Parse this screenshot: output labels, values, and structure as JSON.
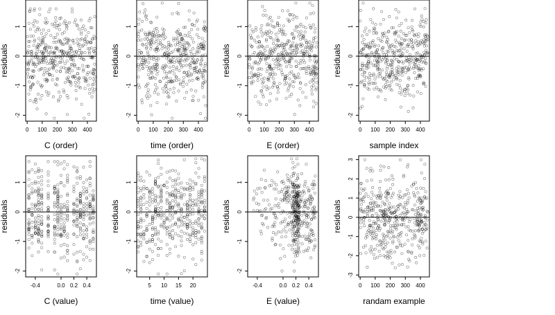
{
  "figure": {
    "background": "#ffffff",
    "point_color": "#000000",
    "reference_line": 0
  },
  "chart_data": [
    {
      "type": "scatter",
      "xlabel": "C (order)",
      "ylabel": "residuals",
      "xlim": [
        -10,
        460
      ],
      "ylim": [
        -2.2,
        1.9
      ],
      "xticks": [
        0,
        100,
        200,
        300,
        400
      ],
      "xticklabels": [
        "0",
        "100",
        "200",
        "300",
        "400"
      ],
      "yticks": [
        -2,
        -1,
        0,
        1
      ],
      "yticklabels": [
        "-2",
        "-1",
        "0",
        "1"
      ],
      "hline": 0,
      "n_points": 450,
      "x_range": [
        0,
        450
      ],
      "y_range": [
        -2.1,
        1.6
      ],
      "x_pattern": "uniform"
    },
    {
      "type": "scatter",
      "xlabel": "time (order)",
      "ylabel": "residuals",
      "xlim": [
        -10,
        460
      ],
      "ylim": [
        -2.2,
        1.9
      ],
      "xticks": [
        0,
        100,
        200,
        300,
        400
      ],
      "xticklabels": [
        "0",
        "100",
        "200",
        "300",
        "400"
      ],
      "yticks": [
        -2,
        -1,
        0,
        1
      ],
      "yticklabels": [
        "-2",
        "-1",
        "0",
        "1"
      ],
      "hline": 0,
      "n_points": 450,
      "x_range": [
        0,
        450
      ],
      "y_range": [
        -2.1,
        1.8
      ],
      "x_pattern": "uniform"
    },
    {
      "type": "scatter",
      "xlabel": "E (order)",
      "ylabel": "residuals",
      "xlim": [
        -10,
        460
      ],
      "ylim": [
        -2.2,
        1.9
      ],
      "xticks": [
        0,
        100,
        200,
        300,
        400
      ],
      "xticklabels": [
        "0",
        "100",
        "200",
        "300",
        "400"
      ],
      "yticks": [
        -2,
        -1,
        0,
        1
      ],
      "yticklabels": [
        "-2",
        "-1",
        "0",
        "1"
      ],
      "hline": 0,
      "n_points": 450,
      "x_range": [
        0,
        450
      ],
      "y_range": [
        -2.0,
        1.8
      ],
      "x_pattern": "uniform"
    },
    {
      "type": "scatter",
      "xlabel": "sample index",
      "ylabel": "residuals",
      "xlim": [
        -10,
        460
      ],
      "ylim": [
        -2.2,
        1.9
      ],
      "xticks": [
        0,
        100,
        200,
        300,
        400
      ],
      "xticklabels": [
        "0",
        "100",
        "200",
        "300",
        "400"
      ],
      "yticks": [
        -2,
        -1,
        0,
        1
      ],
      "yticklabels": [
        "-2",
        "-1",
        "0",
        "1"
      ],
      "hline": 0,
      "n_points": 450,
      "x_range": [
        0,
        450
      ],
      "y_range": [
        -2.0,
        1.8
      ],
      "x_pattern": "uniform"
    },
    {
      "type": "scatter",
      "xlabel": "C (value)",
      "ylabel": "residuals",
      "xlim": [
        -0.55,
        0.55
      ],
      "ylim": [
        -2.2,
        1.9
      ],
      "xticks": [
        -0.4,
        0.0,
        0.2,
        0.4
      ],
      "xticklabels": [
        "-0.4",
        "0.0",
        "0.2",
        "0.4"
      ],
      "yticks": [
        -2,
        -1,
        0,
        1
      ],
      "yticklabels": [
        "-2",
        "-1",
        "0",
        "1"
      ],
      "hline": 0,
      "n_points": 450,
      "x_range": [
        -0.5,
        0.5
      ],
      "y_range": [
        -2.1,
        1.7
      ],
      "x_pattern": "levels",
      "x_levels": [
        -0.5,
        -0.45,
        -0.4,
        -0.35,
        -0.3,
        -0.2,
        -0.1,
        -0.05,
        0.0,
        0.05,
        0.1,
        0.2,
        0.25,
        0.3,
        0.35,
        0.4,
        0.45,
        0.5
      ]
    },
    {
      "type": "scatter",
      "xlabel": "time (value)",
      "ylabel": "residuals",
      "xlim": [
        0.5,
        25
      ],
      "ylim": [
        -2.2,
        1.9
      ],
      "xticks": [
        5,
        10,
        15,
        20
      ],
      "xticklabels": [
        "5",
        "10",
        "15",
        "20"
      ],
      "yticks": [
        -2,
        -1,
        0,
        1
      ],
      "yticklabels": [
        "-2",
        "-1",
        "0",
        "1"
      ],
      "hline": 0,
      "n_points": 450,
      "x_range": [
        1,
        24
      ],
      "y_range": [
        -2.1,
        1.8
      ],
      "x_pattern": "levels",
      "x_levels": [
        1,
        2,
        3,
        4,
        5,
        6,
        7,
        8,
        9,
        10,
        11,
        12,
        13,
        14,
        15,
        16,
        17,
        18,
        19,
        20,
        21,
        22,
        23,
        24
      ]
    },
    {
      "type": "scatter",
      "xlabel": "E (value)",
      "ylabel": "residuals",
      "xlim": [
        -0.55,
        0.55
      ],
      "ylim": [
        -2.2,
        1.9
      ],
      "xticks": [
        -0.4,
        0.0,
        0.2,
        0.4
      ],
      "xticklabels": [
        "-0.4",
        "0.0",
        "0.2",
        "0.4"
      ],
      "yticks": [
        -2,
        -1,
        0,
        1
      ],
      "yticklabels": [
        "-2",
        "-1",
        "0",
        "1"
      ],
      "hline": 0,
      "n_points": 450,
      "x_range": [
        -0.5,
        0.5
      ],
      "y_range": [
        -2.0,
        1.8
      ],
      "x_pattern": "skewed"
    },
    {
      "type": "scatter",
      "xlabel": "randam example",
      "ylabel": "residuals",
      "xlim": [
        -10,
        460
      ],
      "ylim": [
        -3.1,
        3.2
      ],
      "xticks": [
        0,
        100,
        200,
        300,
        400
      ],
      "xticklabels": [
        "0",
        "100",
        "200",
        "300",
        "400"
      ],
      "yticks": [
        -3,
        -2,
        -1,
        0,
        1,
        2,
        3
      ],
      "yticklabels": [
        "-3",
        "-2",
        "-1",
        "0",
        "1",
        "2",
        "3"
      ],
      "hline": 0,
      "n_points": 450,
      "x_range": [
        0,
        450
      ],
      "y_range": [
        -3.0,
        3.0
      ],
      "x_pattern": "uniform"
    }
  ]
}
